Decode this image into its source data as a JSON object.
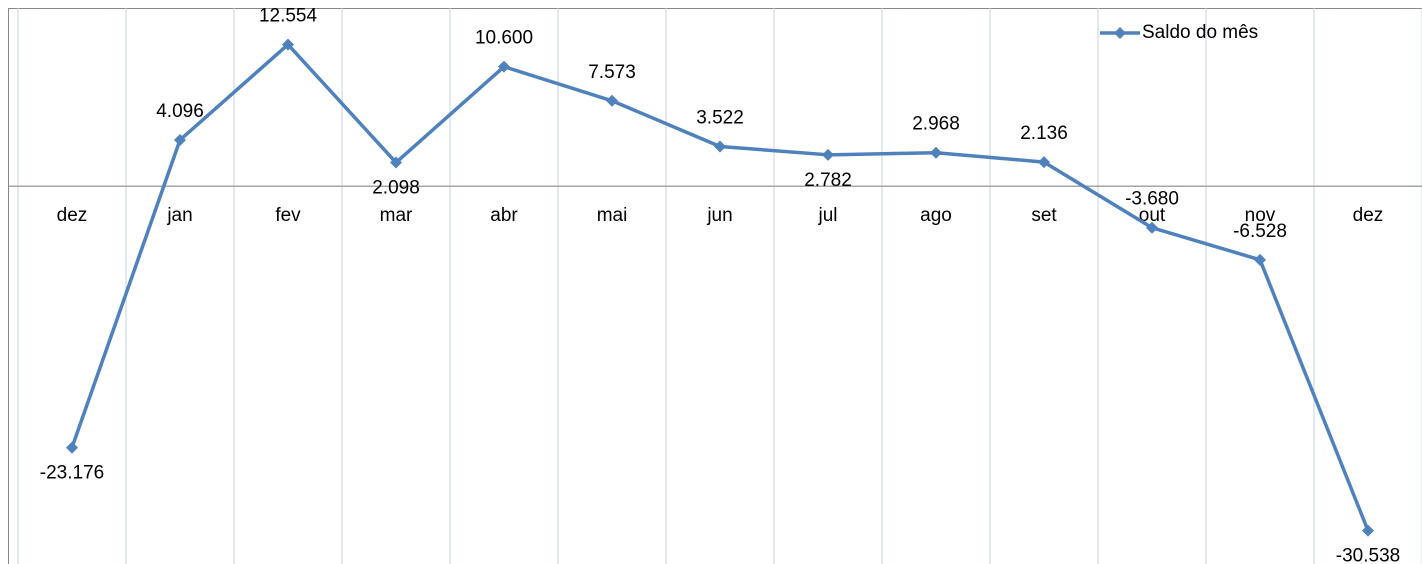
{
  "chart_data": {
    "type": "line",
    "categories": [
      "dez",
      "jan",
      "fev",
      "mar",
      "abr",
      "mai",
      "jun",
      "jul",
      "ago",
      "set",
      "out",
      "nov",
      "dez"
    ],
    "series": [
      {
        "name": "Saldo do mês",
        "color": "#4f81bd",
        "values": [
          -23176,
          4096,
          12554,
          2098,
          10600,
          7573,
          3522,
          2782,
          2968,
          2136,
          -3680,
          -6528,
          -30538
        ],
        "value_labels": [
          "-23.176",
          "4.096",
          "12.554",
          "2.098",
          "10.600",
          "7.573",
          "3.522",
          "2.782",
          "2.968",
          "2.136",
          "-3.680",
          "-6.528",
          "-30.538"
        ]
      }
    ],
    "ylim": [
      -33500,
      15800
    ],
    "legend": "upper right"
  }
}
